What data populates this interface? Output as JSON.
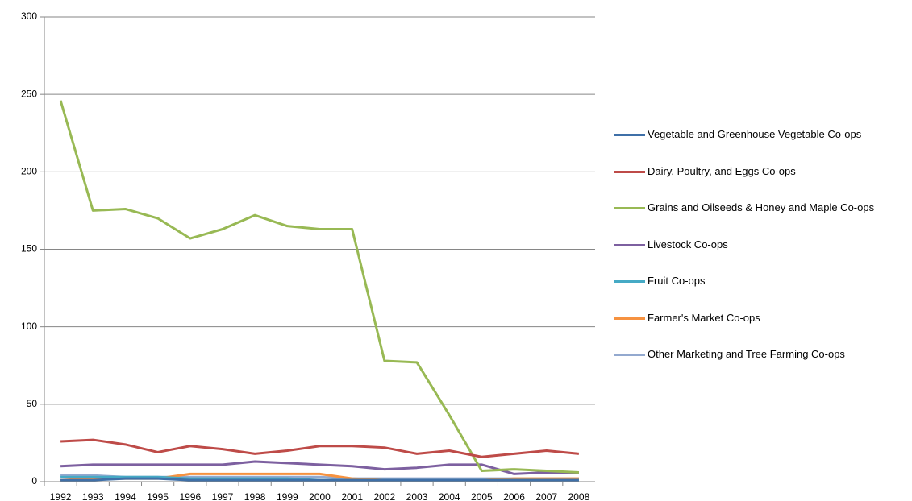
{
  "chart_data": {
    "type": "line",
    "categories": [
      "1992",
      "1993",
      "1994",
      "1995",
      "1996",
      "1997",
      "1998",
      "1999",
      "2000",
      "2001",
      "2002",
      "2003",
      "2004",
      "2005",
      "2006",
      "2007",
      "2008"
    ],
    "series": [
      {
        "name": "Vegetable and Greenhouse Vegetable Co-ops",
        "color": "#3f70a8",
        "values": [
          1,
          1,
          2,
          2,
          1,
          1,
          1,
          1,
          1,
          1,
          1,
          1,
          1,
          1,
          1,
          1,
          1
        ]
      },
      {
        "name": "Dairy, Poultry, and Eggs Co-ops",
        "color": "#be4b48",
        "values": [
          26,
          27,
          24,
          19,
          23,
          21,
          18,
          20,
          23,
          23,
          22,
          18,
          20,
          16,
          18,
          20,
          18
        ]
      },
      {
        "name": "Grains and Oilseeds & Honey and Maple Co-ops",
        "color": "#98b954",
        "values": [
          246,
          175,
          176,
          170,
          157,
          163,
          172,
          165,
          163,
          163,
          78,
          77,
          43,
          7,
          8,
          7,
          6
        ]
      },
      {
        "name": "Livestock Co-ops",
        "color": "#7d60a0",
        "values": [
          10,
          11,
          11,
          11,
          11,
          11,
          13,
          12,
          11,
          10,
          8,
          9,
          11,
          11,
          5,
          6,
          6
        ]
      },
      {
        "name": "Fruit Co-ops",
        "color": "#46aac5",
        "values": [
          3,
          3,
          3,
          3,
          2,
          2,
          2,
          2,
          1,
          1,
          1,
          1,
          1,
          1,
          1,
          1,
          1
        ]
      },
      {
        "name": "Farmer's Market Co-ops",
        "color": "#f69240",
        "values": [
          1,
          2,
          2,
          2,
          5,
          5,
          5,
          5,
          5,
          2,
          1,
          1,
          1,
          1,
          2,
          2,
          2
        ]
      },
      {
        "name": "Other Marketing and Tree Farming Co-ops",
        "color": "#93a9cf",
        "values": [
          4,
          4,
          3,
          3,
          3,
          3,
          3,
          3,
          3,
          2,
          2,
          2,
          2,
          2,
          2,
          2,
          2
        ]
      }
    ],
    "ylim": [
      0,
      300
    ],
    "yticks": [
      0,
      50,
      100,
      150,
      200,
      250,
      300
    ],
    "grid": true,
    "legend": "right"
  }
}
